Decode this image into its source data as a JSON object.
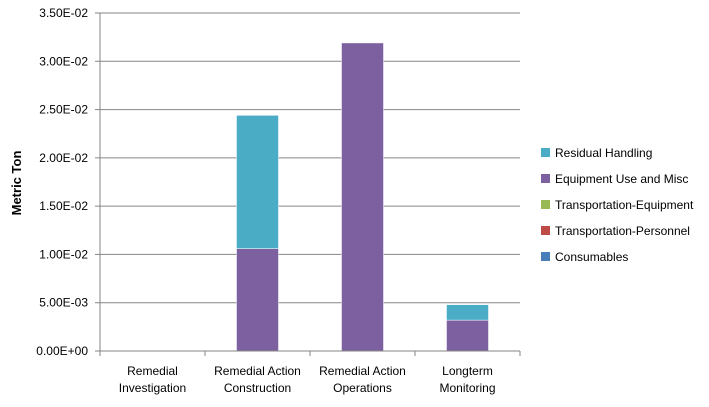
{
  "chart_data": {
    "type": "bar",
    "stacked": true,
    "title": "",
    "xlabel": "",
    "ylabel": "Metric Ton",
    "ylim": [
      0,
      0.035
    ],
    "yticks": [
      "0.00E+00",
      "5.00E-03",
      "1.00E-02",
      "1.50E-02",
      "2.00E-02",
      "2.50E-02",
      "3.00E-02",
      "3.50E-02"
    ],
    "categories": [
      [
        "Remedial",
        "Investigation"
      ],
      [
        "Remedial Action",
        "Construction"
      ],
      [
        "Remedial Action",
        "Operations"
      ],
      [
        "Longterm",
        "Monitoring"
      ]
    ],
    "grid": true,
    "legend_position": "right",
    "series": [
      {
        "name": "Consumables",
        "color": "#4a7ebb",
        "values": [
          0,
          0,
          0,
          0
        ]
      },
      {
        "name": "Transportation-Personnel",
        "color": "#be4b48",
        "values": [
          0,
          0,
          0,
          0
        ]
      },
      {
        "name": "Transportation-Equipment",
        "color": "#98b954",
        "values": [
          0,
          0,
          0,
          0
        ]
      },
      {
        "name": "Equipment Use and Misc",
        "color": "#7d60a0",
        "values": [
          0,
          0.0106,
          0.0319,
          0.0032
        ]
      },
      {
        "name": "Residual Handling",
        "color": "#4bacc6",
        "values": [
          0,
          0.0138,
          0,
          0.0016
        ]
      }
    ]
  }
}
